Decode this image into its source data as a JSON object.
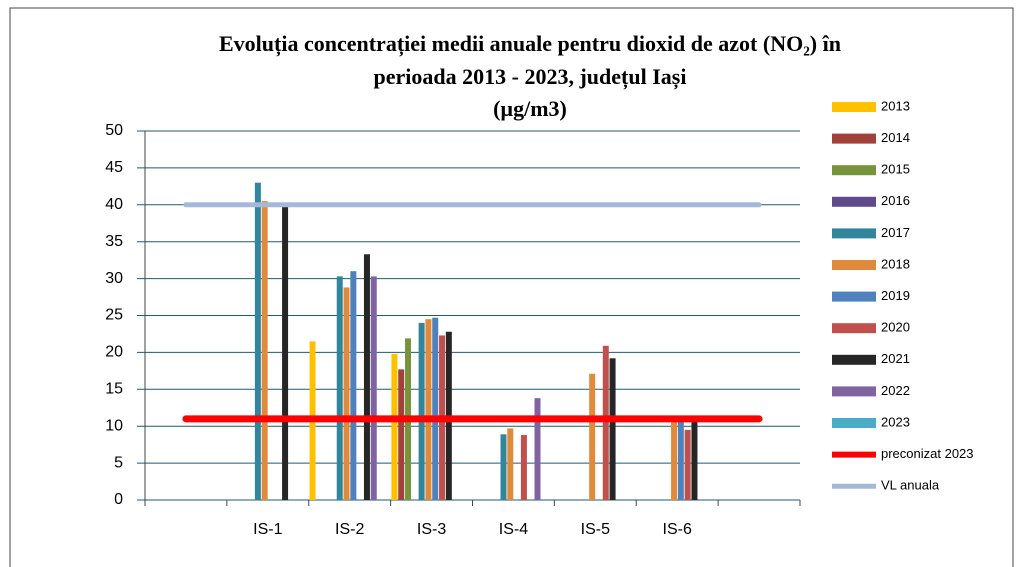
{
  "chart_data": {
    "type": "bar",
    "title": [
      "Evoluția concentrației medii anuale pentru dioxid de azot (NO₂) în",
      "perioada 2013 - 2023, județul Iași",
      "(µg/m3)"
    ],
    "categories": [
      null,
      "IS-1",
      "IS-2",
      "IS-3",
      "IS-4",
      "IS-5",
      "IS-6",
      null
    ],
    "series": [
      {
        "name": "2013",
        "color": "#ffc000",
        "values": [
          null,
          null,
          21.5,
          19.8,
          null,
          null,
          null,
          null
        ]
      },
      {
        "name": "2014",
        "color": "#a0413a",
        "values": [
          null,
          null,
          null,
          17.7,
          null,
          null,
          null,
          null
        ]
      },
      {
        "name": "2015",
        "color": "#77933c",
        "values": [
          null,
          null,
          null,
          21.9,
          null,
          null,
          null,
          null
        ]
      },
      {
        "name": "2016",
        "color": "#5f4a8b",
        "values": [
          null,
          null,
          null,
          null,
          null,
          null,
          null,
          null
        ]
      },
      {
        "name": "2017",
        "color": "#31859c",
        "values": [
          null,
          43,
          30.3,
          24,
          8.9,
          null,
          null,
          null
        ]
      },
      {
        "name": "2018",
        "color": "#e08a3c",
        "values": [
          null,
          40.5,
          28.8,
          24.5,
          9.7,
          17.1,
          11,
          null
        ]
      },
      {
        "name": "2019",
        "color": "#4f81bd",
        "values": [
          null,
          null,
          31,
          24.7,
          null,
          null,
          10.8,
          null
        ]
      },
      {
        "name": "2020",
        "color": "#c0504d",
        "values": [
          null,
          null,
          null,
          22.3,
          8.8,
          20.9,
          9.5,
          null
        ]
      },
      {
        "name": "2021",
        "color": "#262626",
        "values": [
          null,
          40,
          33.3,
          22.8,
          null,
          19.2,
          11,
          null
        ]
      },
      {
        "name": "2022",
        "color": "#8064a2",
        "values": [
          null,
          null,
          30.3,
          null,
          13.8,
          null,
          null,
          null
        ]
      },
      {
        "name": "2023",
        "color": "#4bacc6",
        "values": [
          null,
          null,
          null,
          null,
          null,
          null,
          null,
          null
        ]
      },
      {
        "name": "preconizat 2023",
        "type": "line",
        "color": "#ff0000",
        "values": [
          11,
          11,
          11,
          11,
          11,
          11,
          11,
          11
        ]
      },
      {
        "name": "VL anuala",
        "type": "line",
        "color": "#a6b8d8",
        "values": [
          40,
          40,
          40,
          40,
          40,
          40,
          40,
          40
        ]
      }
    ],
    "ylim": [
      0,
      50
    ],
    "yticks": [
      0,
      5,
      10,
      15,
      20,
      25,
      30,
      35,
      40,
      45,
      50
    ],
    "grid": true,
    "legend": "right"
  }
}
